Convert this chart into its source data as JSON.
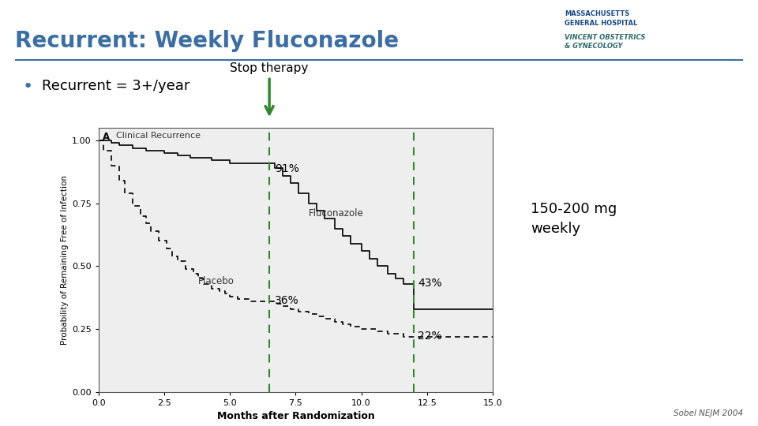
{
  "title": "Recurrent: Weekly Fluconazole",
  "title_color": "#3B6EA5",
  "bullet_text": "Recurrent = 3+/year",
  "stop_therapy_label": "Stop therapy",
  "dose_label": "150-200 mg\nweekly",
  "label_fluconazole": "Fluconazole",
  "label_placebo": "Placebo",
  "label_91": "91%",
  "label_36": "36%",
  "label_43": "43%",
  "label_22": "22%",
  "subplot_label": "A",
  "subplot_label2": "Clinical Recurrence",
  "xlabel": "Months after Randomization",
  "ylabel": "Probability of Remaining Free of Infection",
  "reference": "Sobel NEJM 2004",
  "dashed_line_x1": 6.5,
  "dashed_line_x2": 12.0,
  "plot_bg_color": "#eeeeee",
  "slide_bg": "#ffffff",
  "fluconazole_color": "#000000",
  "placebo_color": "#000000",
  "dashed_vline_color": "#2d8a2d",
  "arrow_color": "#2d8a2d",
  "hrule_color": "#3B6EA5",
  "fluconazole_x": [
    0.0,
    0.3,
    0.5,
    0.8,
    1.0,
    1.3,
    1.5,
    1.8,
    2.0,
    2.3,
    2.5,
    2.8,
    3.0,
    3.3,
    3.5,
    3.8,
    4.0,
    4.3,
    4.5,
    4.8,
    5.0,
    5.3,
    5.5,
    5.8,
    6.0,
    6.3,
    6.5,
    6.5,
    6.7,
    7.0,
    7.3,
    7.6,
    8.0,
    8.3,
    8.6,
    9.0,
    9.3,
    9.6,
    10.0,
    10.3,
    10.6,
    11.0,
    11.3,
    11.6,
    12.0,
    12.0,
    14.5,
    15.0
  ],
  "fluconazole_y": [
    1.0,
    1.0,
    0.99,
    0.98,
    0.98,
    0.97,
    0.97,
    0.96,
    0.96,
    0.96,
    0.95,
    0.95,
    0.94,
    0.94,
    0.93,
    0.93,
    0.93,
    0.92,
    0.92,
    0.92,
    0.91,
    0.91,
    0.91,
    0.91,
    0.91,
    0.91,
    0.91,
    0.91,
    0.89,
    0.86,
    0.83,
    0.79,
    0.75,
    0.72,
    0.69,
    0.65,
    0.62,
    0.59,
    0.56,
    0.53,
    0.5,
    0.47,
    0.45,
    0.43,
    0.43,
    0.33,
    0.33,
    0.33
  ],
  "placebo_x": [
    0.0,
    0.2,
    0.5,
    0.8,
    1.0,
    1.3,
    1.6,
    1.8,
    2.0,
    2.3,
    2.6,
    2.8,
    3.0,
    3.3,
    3.6,
    3.8,
    4.0,
    4.3,
    4.6,
    4.8,
    5.0,
    5.3,
    5.6,
    5.8,
    6.0,
    6.2,
    6.5,
    6.5,
    6.8,
    7.0,
    7.3,
    7.6,
    8.0,
    8.3,
    8.6,
    9.0,
    9.3,
    9.6,
    10.0,
    10.3,
    10.6,
    11.0,
    11.3,
    11.6,
    12.0,
    12.5,
    13.0,
    13.5,
    14.0,
    14.5,
    15.0
  ],
  "placebo_y": [
    1.0,
    0.96,
    0.9,
    0.84,
    0.79,
    0.74,
    0.7,
    0.67,
    0.64,
    0.6,
    0.57,
    0.54,
    0.52,
    0.49,
    0.47,
    0.45,
    0.43,
    0.41,
    0.4,
    0.39,
    0.38,
    0.37,
    0.37,
    0.36,
    0.36,
    0.36,
    0.36,
    0.36,
    0.35,
    0.34,
    0.33,
    0.32,
    0.31,
    0.3,
    0.29,
    0.28,
    0.27,
    0.26,
    0.25,
    0.25,
    0.24,
    0.23,
    0.23,
    0.22,
    0.22,
    0.22,
    0.22,
    0.22,
    0.22,
    0.22,
    0.22
  ],
  "xlim": [
    0.0,
    15.0
  ],
  "ylim": [
    0.0,
    1.05
  ],
  "xticks": [
    0.0,
    2.5,
    5.0,
    7.5,
    10.0,
    12.5,
    15.0
  ],
  "yticks": [
    0.0,
    0.25,
    0.5,
    0.75,
    1.0
  ]
}
